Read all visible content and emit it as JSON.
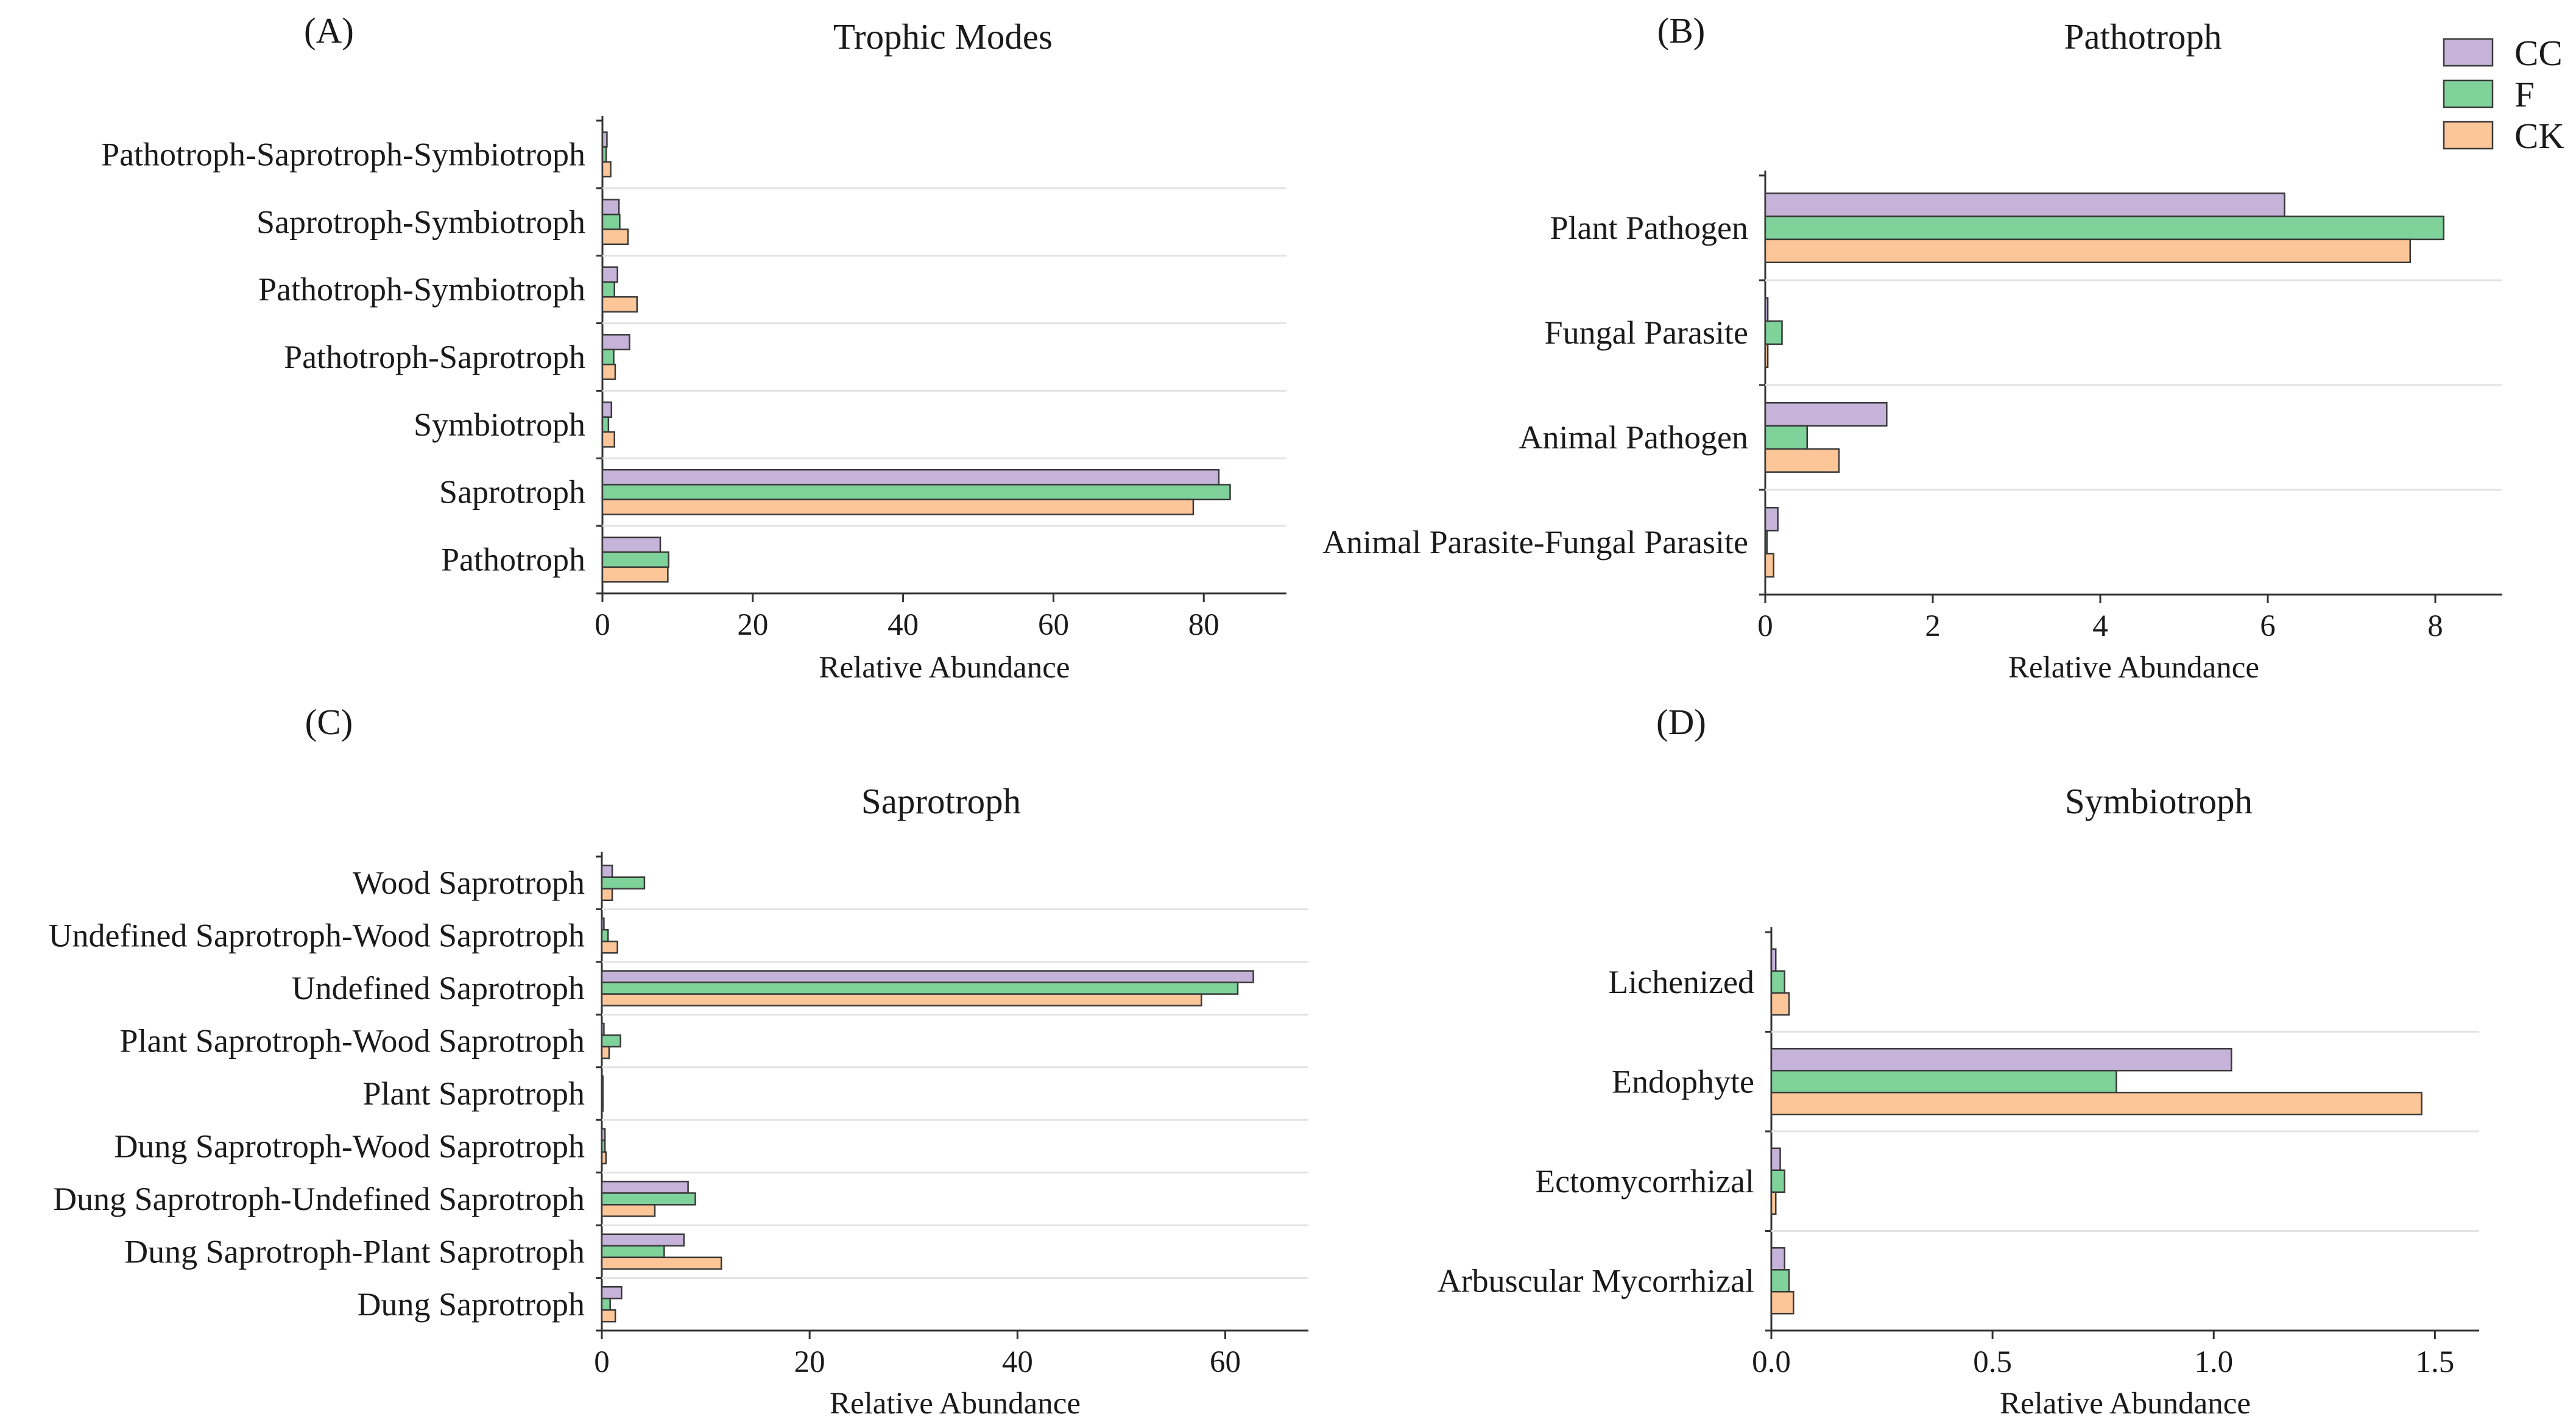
{
  "legend": {
    "items": [
      {
        "name": "CC",
        "color": "#c5b3d9"
      },
      {
        "name": "F",
        "color": "#7fd29a"
      },
      {
        "name": "CK",
        "color": "#fcc698"
      }
    ]
  },
  "chart_data": [
    {
      "id": "A",
      "type": "bar",
      "orientation": "horizontal",
      "panel_label": "(A)",
      "title": "Trophic Modes",
      "xlabel": "Relative Abundance",
      "xlim": [
        0,
        91
      ],
      "xticks": [
        0,
        20,
        40,
        60,
        80
      ],
      "xtick_labels": [
        "0",
        "20",
        "40",
        "60",
        "80"
      ],
      "categories": [
        "Pathotroph-Saprotroph-Symbiotroph",
        "Saprotroph-Symbiotroph",
        "Pathotroph-Symbiotroph",
        "Pathotroph-Saprotroph",
        "Symbiotroph",
        "Saprotroph",
        "Pathotroph"
      ],
      "series": [
        {
          "name": "CC",
          "values": [
            0.6,
            2.2,
            2.0,
            3.6,
            1.2,
            82.0,
            7.7
          ]
        },
        {
          "name": "F",
          "values": [
            0.5,
            2.3,
            1.6,
            1.5,
            0.8,
            83.5,
            8.8
          ]
        },
        {
          "name": "CK",
          "values": [
            1.1,
            3.4,
            4.6,
            1.7,
            1.6,
            78.6,
            8.7
          ]
        }
      ]
    },
    {
      "id": "B",
      "type": "bar",
      "orientation": "horizontal",
      "panel_label": "(B)",
      "title": "Pathotroph",
      "xlabel": "Relative Abundance",
      "xlim": [
        0,
        8.8
      ],
      "xticks": [
        0,
        2,
        4,
        6,
        8
      ],
      "xtick_labels": [
        "0",
        "2",
        "4",
        "6",
        "8"
      ],
      "categories": [
        "Plant Pathogen",
        "Fungal Parasite",
        "Animal Pathogen",
        "Animal Parasite-Fungal Parasite"
      ],
      "series": [
        {
          "name": "CC",
          "values": [
            6.2,
            0.03,
            1.45,
            0.15
          ]
        },
        {
          "name": "F",
          "values": [
            8.1,
            0.2,
            0.5,
            0.02
          ]
        },
        {
          "name": "CK",
          "values": [
            7.7,
            0.03,
            0.88,
            0.1
          ]
        }
      ]
    },
    {
      "id": "C",
      "type": "bar",
      "orientation": "horizontal",
      "panel_label": "(C)",
      "title": "Saprotroph",
      "xlabel": "Relative Abundance",
      "xlim": [
        0,
        68
      ],
      "xticks": [
        0,
        20,
        40,
        60
      ],
      "xtick_labels": [
        "0",
        "20",
        "40",
        "60"
      ],
      "categories": [
        "Wood Saprotroph",
        "Undefined Saprotroph-Wood Saprotroph",
        "Undefined Saprotroph",
        "Plant Saprotroph-Wood Saprotroph",
        "Plant Saprotroph",
        "Dung Saprotroph-Wood Saprotroph",
        "Dung Saprotroph-Undefined Saprotroph",
        "Dung Saprotroph-Plant Saprotroph",
        "Dung Saprotroph"
      ],
      "series": [
        {
          "name": "CC",
          "values": [
            1.0,
            0.2,
            62.7,
            0.2,
            0.1,
            0.3,
            8.3,
            7.9,
            1.9
          ]
        },
        {
          "name": "F",
          "values": [
            4.1,
            0.6,
            61.2,
            1.8,
            0.1,
            0.3,
            9.0,
            6.0,
            0.8
          ]
        },
        {
          "name": "CK",
          "values": [
            1.0,
            1.5,
            57.7,
            0.7,
            0.1,
            0.4,
            5.1,
            11.5,
            1.3
          ]
        }
      ]
    },
    {
      "id": "D",
      "type": "bar",
      "orientation": "horizontal",
      "panel_label": "(D)",
      "title": "Symbiotroph",
      "xlabel": "Relative Abundance",
      "xlim": [
        0,
        1.6
      ],
      "xticks": [
        0,
        0.5,
        1.0,
        1.5
      ],
      "xtick_labels": [
        "0.0",
        "0.5",
        "1.0",
        "1.5"
      ],
      "categories": [
        "Lichenized",
        "Endophyte",
        "Ectomycorrhizal",
        "Arbuscular Mycorrhizal"
      ],
      "series": [
        {
          "name": "CC",
          "values": [
            0.01,
            1.04,
            0.02,
            0.03
          ]
        },
        {
          "name": "F",
          "values": [
            0.03,
            0.78,
            0.03,
            0.04
          ]
        },
        {
          "name": "CK",
          "values": [
            0.04,
            1.47,
            0.01,
            0.05
          ]
        }
      ]
    }
  ]
}
